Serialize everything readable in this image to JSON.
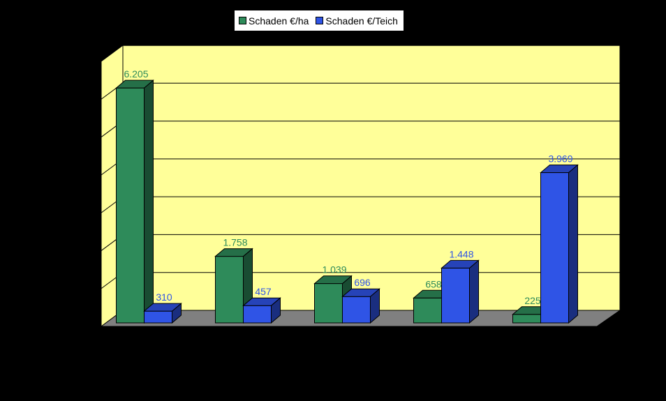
{
  "chart_data": {
    "type": "bar",
    "title": "",
    "xlabel": "",
    "ylabel": "",
    "categories": [
      "",
      "",
      "",
      "",
      ""
    ],
    "ylim": [
      0,
      7000
    ],
    "grid": true,
    "legend_position": "top",
    "style": "3d-clustered",
    "series": [
      {
        "name": "Schaden €/ha",
        "values": [
          6205,
          1758,
          1039,
          658,
          225
        ],
        "labels": [
          "6.205",
          "1.758",
          "1.039",
          "658",
          "225"
        ],
        "color": "#2e8b5a",
        "label_color": "#2e8b5a"
      },
      {
        "name": "Schaden €/Teich",
        "values": [
          310,
          457,
          696,
          1448,
          3969
        ],
        "labels": [
          "310",
          "457",
          "696",
          "1.448",
          "3.969"
        ],
        "color": "#2f54e6",
        "label_color": "#2f54e6"
      }
    ],
    "colors": {
      "background": "#000000",
      "wall": "#ffff99",
      "floor": "#808080",
      "gridline": "#000000"
    }
  }
}
